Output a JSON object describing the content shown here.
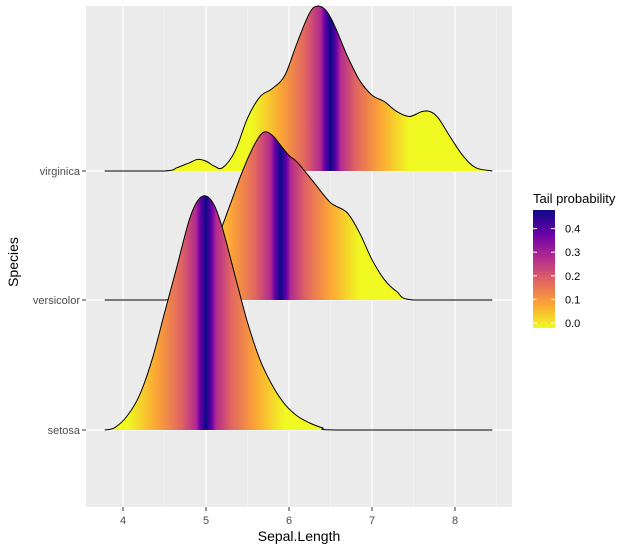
{
  "chart_data": {
    "type": "ridgeline",
    "fill": "tail probability gradient (plasma scale)",
    "xlabel": "Sepal.Length",
    "ylabel": "Species",
    "xlim": [
      3.7,
      8.6
    ],
    "x_ticks": [
      4,
      5,
      6,
      7,
      8
    ],
    "x_tick_labels": [
      "4",
      "5",
      "6",
      "7",
      "8"
    ],
    "categories": [
      "setosa",
      "versicolor",
      "virginica"
    ],
    "range": [
      3.78,
      8.45
    ],
    "series": [
      {
        "name": "setosa",
        "median": 5.0,
        "x": [
          3.78,
          3.9,
          4.05,
          4.2,
          4.35,
          4.5,
          4.65,
          4.8,
          4.9,
          5.0,
          5.1,
          5.2,
          5.35,
          5.5,
          5.65,
          5.8,
          5.95,
          6.1,
          6.25,
          6.4,
          6.6,
          8.45
        ],
        "density": [
          0.0,
          0.01,
          0.06,
          0.15,
          0.3,
          0.5,
          0.7,
          0.9,
          0.98,
          1.0,
          0.96,
          0.86,
          0.66,
          0.46,
          0.3,
          0.19,
          0.11,
          0.06,
          0.03,
          0.01,
          0.0,
          0.0
        ]
      },
      {
        "name": "versicolor",
        "median": 5.9,
        "x": [
          3.78,
          4.5,
          4.7,
          4.85,
          5.0,
          5.15,
          5.3,
          5.45,
          5.6,
          5.7,
          5.8,
          5.9,
          6.0,
          6.1,
          6.3,
          6.5,
          6.7,
          6.85,
          7.0,
          7.15,
          7.3,
          7.5,
          8.45
        ],
        "density": [
          0.0,
          0.0,
          0.02,
          0.07,
          0.2,
          0.38,
          0.58,
          0.78,
          0.94,
          1.0,
          0.98,
          0.92,
          0.86,
          0.82,
          0.7,
          0.58,
          0.52,
          0.4,
          0.24,
          0.12,
          0.05,
          0.0,
          0.0
        ]
      },
      {
        "name": "virginica",
        "median": 6.5,
        "x": [
          3.78,
          4.5,
          4.65,
          4.8,
          4.9,
          5.0,
          5.1,
          5.2,
          5.35,
          5.5,
          5.65,
          5.8,
          5.95,
          6.1,
          6.25,
          6.35,
          6.45,
          6.55,
          6.7,
          6.85,
          7.0,
          7.15,
          7.3,
          7.45,
          7.6,
          7.7,
          7.8,
          7.95,
          8.1,
          8.25,
          8.45
        ],
        "density": [
          0.0,
          0.0,
          0.02,
          0.05,
          0.07,
          0.06,
          0.03,
          0.02,
          0.12,
          0.32,
          0.45,
          0.5,
          0.58,
          0.78,
          0.96,
          1.0,
          0.97,
          0.88,
          0.7,
          0.55,
          0.46,
          0.42,
          0.36,
          0.33,
          0.36,
          0.36,
          0.32,
          0.2,
          0.09,
          0.02,
          0.0
        ]
      }
    ],
    "legend": {
      "title": "Tail probability",
      "position": "right",
      "breaks": [
        0.0,
        0.1,
        0.2,
        0.3,
        0.4
      ],
      "labels": [
        "0.0",
        "0.1",
        "0.2",
        "0.3",
        "0.4"
      ],
      "range": [
        0,
        0.5
      ]
    },
    "colors": {
      "panel": "#ebebeb",
      "grid_major": "#ffffff",
      "outline": "#000000",
      "scale": [
        "#0d0887",
        "#6a00a8",
        "#b12a90",
        "#e16462",
        "#fca636",
        "#f0f921"
      ]
    }
  }
}
